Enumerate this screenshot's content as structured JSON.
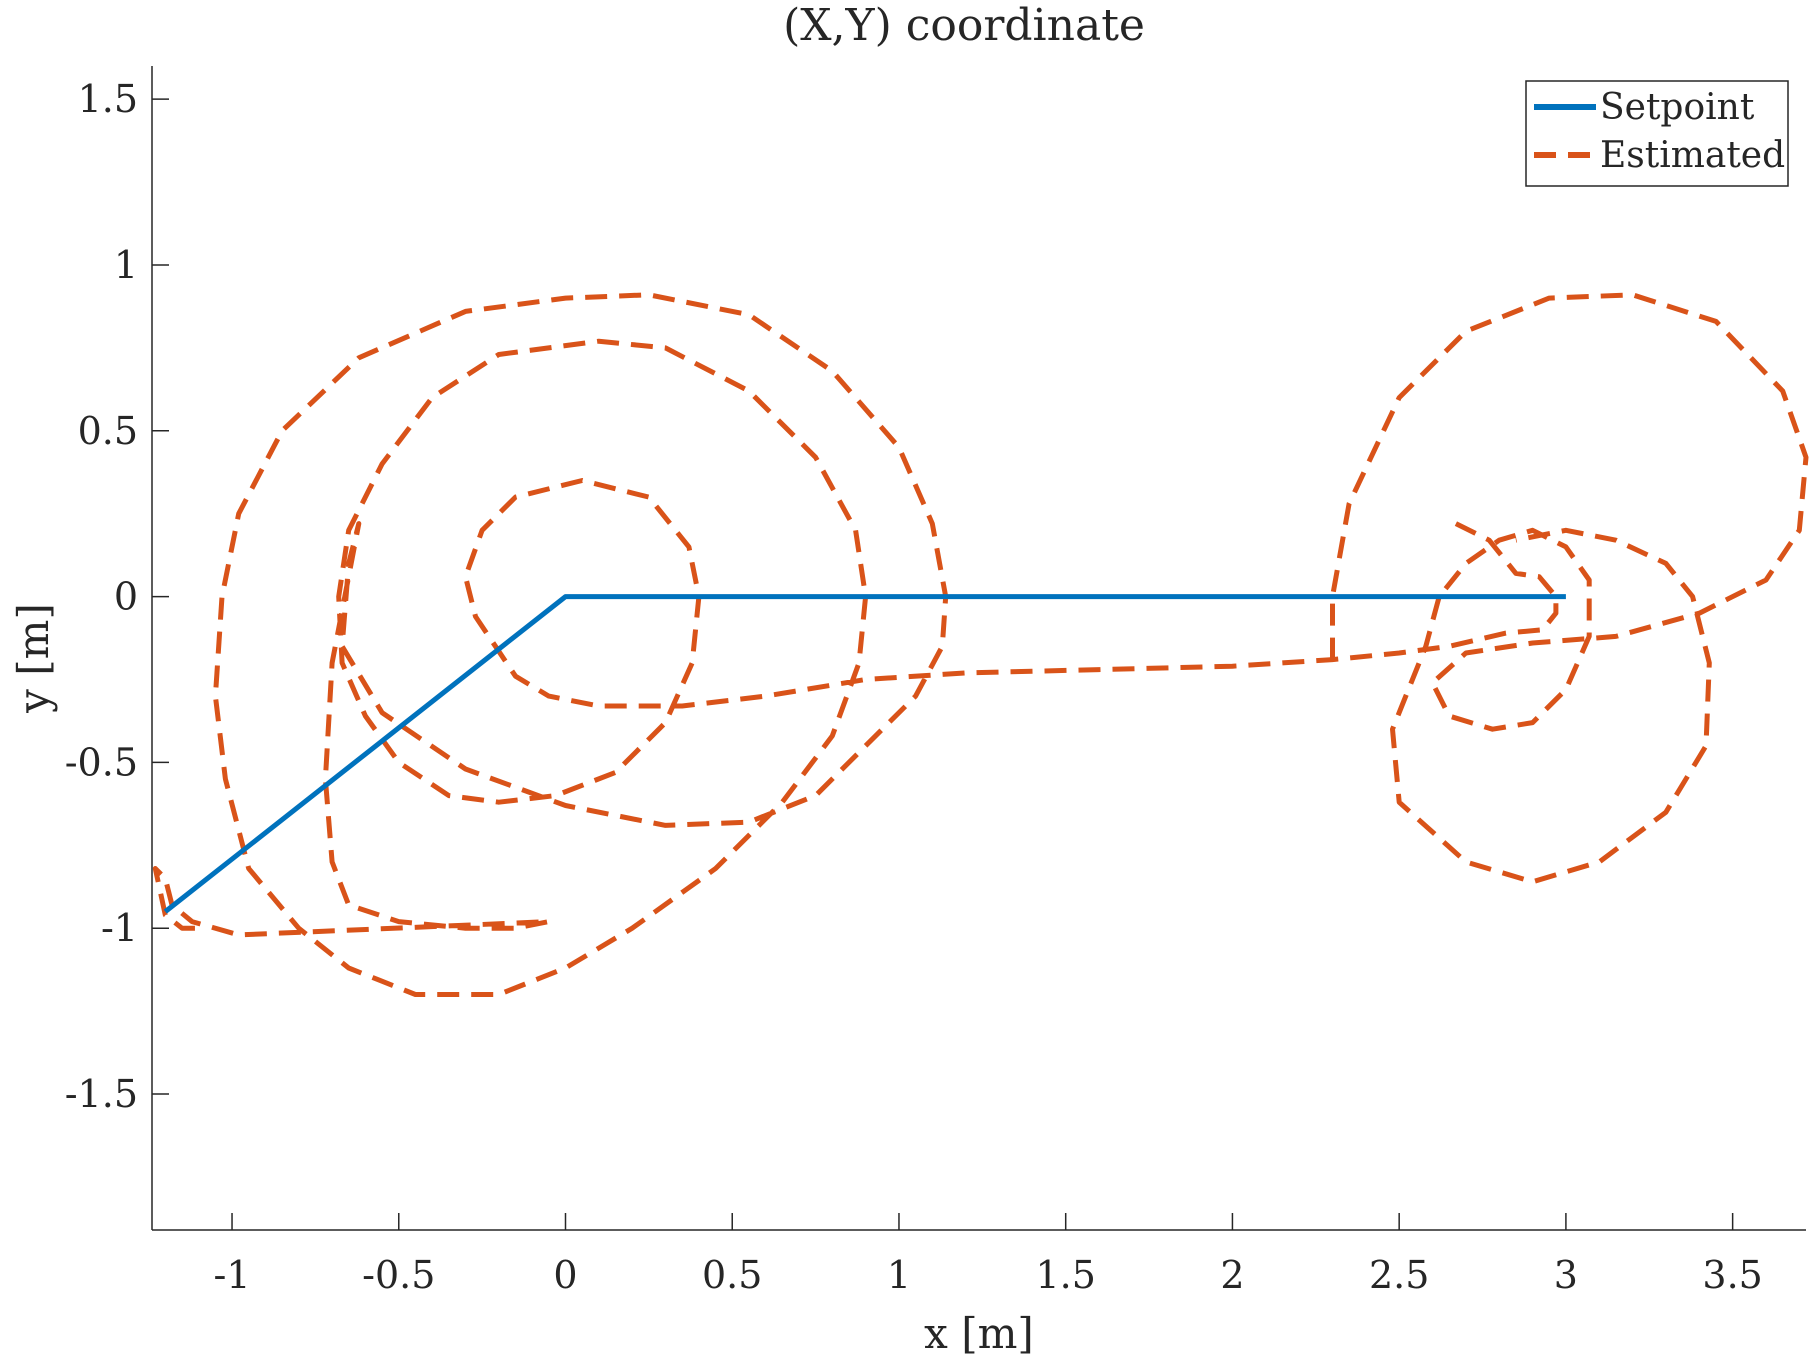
{
  "chart_data": {
    "type": "line",
    "title": "(X,Y) coordinate",
    "xlabel": "x [m]",
    "ylabel": "y [m]",
    "xlim": [
      -1.24,
      3.72
    ],
    "ylim": [
      -1.91,
      1.6
    ],
    "xticks": [
      -1,
      -0.5,
      0,
      0.5,
      1,
      1.5,
      2,
      2.5,
      3,
      3.5
    ],
    "yticks": [
      -1.5,
      -1,
      -0.5,
      0,
      0.5,
      1,
      1.5
    ],
    "grid": false,
    "legend_position": "top-right",
    "series": [
      {
        "name": "Setpoint",
        "color": "#0072BD",
        "style": "solid",
        "points": [
          [
            -1.2,
            -0.95
          ],
          [
            0,
            0
          ],
          [
            3,
            0
          ]
        ]
      },
      {
        "name": "Estimated",
        "color": "#D95319",
        "style": "dashed",
        "points": [
          [
            2.67,
            0.22
          ],
          [
            2.77,
            0.17
          ],
          [
            2.85,
            0.07
          ],
          [
            2.92,
            0.06
          ],
          [
            2.97,
            0.0
          ],
          [
            2.97,
            -0.05
          ],
          [
            2.93,
            -0.1
          ],
          [
            2.82,
            -0.11
          ],
          [
            2.65,
            -0.15
          ],
          [
            2.5,
            -0.17
          ],
          [
            2.3,
            -0.19
          ],
          [
            2.0,
            -0.21
          ],
          [
            1.6,
            -0.22
          ],
          [
            1.2,
            -0.23
          ],
          [
            0.9,
            -0.25
          ],
          [
            0.6,
            -0.3
          ],
          [
            0.35,
            -0.33
          ],
          [
            0.1,
            -0.33
          ],
          [
            -0.05,
            -0.3
          ],
          [
            -0.15,
            -0.24
          ],
          [
            -0.27,
            -0.06
          ],
          [
            -0.3,
            0.06
          ],
          [
            -0.25,
            0.2
          ],
          [
            -0.15,
            0.3
          ],
          [
            0.05,
            0.35
          ],
          [
            0.25,
            0.3
          ],
          [
            0.37,
            0.15
          ],
          [
            0.4,
            0.0
          ],
          [
            0.38,
            -0.2
          ],
          [
            0.3,
            -0.38
          ],
          [
            0.15,
            -0.53
          ],
          [
            -0.03,
            -0.6
          ],
          [
            -0.2,
            -0.62
          ],
          [
            -0.35,
            -0.6
          ],
          [
            -0.5,
            -0.5
          ],
          [
            -0.6,
            -0.36
          ],
          [
            -0.67,
            -0.2
          ],
          [
            -0.68,
            0.0
          ],
          [
            -0.65,
            0.2
          ],
          [
            -0.55,
            0.4
          ],
          [
            -0.4,
            0.6
          ],
          [
            -0.2,
            0.73
          ],
          [
            0.1,
            0.77
          ],
          [
            0.3,
            0.75
          ],
          [
            0.55,
            0.62
          ],
          [
            0.75,
            0.42
          ],
          [
            0.87,
            0.2
          ],
          [
            0.9,
            0.0
          ],
          [
            0.88,
            -0.2
          ],
          [
            0.8,
            -0.42
          ],
          [
            0.65,
            -0.62
          ],
          [
            0.45,
            -0.82
          ],
          [
            0.2,
            -1.0
          ],
          [
            0.0,
            -1.12
          ],
          [
            -0.2,
            -1.2
          ],
          [
            -0.45,
            -1.2
          ],
          [
            -0.65,
            -1.12
          ],
          [
            -0.8,
            -1.0
          ],
          [
            -0.95,
            -0.82
          ],
          [
            -1.02,
            -0.55
          ],
          [
            -1.05,
            -0.3
          ],
          [
            -1.03,
            0.0
          ],
          [
            -0.98,
            0.25
          ],
          [
            -0.85,
            0.5
          ],
          [
            -0.62,
            0.72
          ],
          [
            -0.3,
            0.86
          ],
          [
            0.0,
            0.9
          ],
          [
            0.25,
            0.91
          ],
          [
            0.55,
            0.85
          ],
          [
            0.8,
            0.68
          ],
          [
            1.0,
            0.45
          ],
          [
            1.1,
            0.22
          ],
          [
            1.14,
            0.0
          ],
          [
            1.13,
            -0.15
          ],
          [
            1.05,
            -0.3
          ],
          [
            0.95,
            -0.4
          ],
          [
            0.75,
            -0.6
          ],
          [
            0.55,
            -0.68
          ],
          [
            0.3,
            -0.69
          ],
          [
            0.0,
            -0.63
          ],
          [
            -0.3,
            -0.52
          ],
          [
            -0.55,
            -0.35
          ],
          [
            -0.67,
            -0.15
          ],
          [
            -0.65,
            0.1
          ],
          [
            -0.62,
            0.22
          ],
          [
            -0.7,
            -0.2
          ],
          [
            -0.72,
            -0.55
          ],
          [
            -0.7,
            -0.8
          ],
          [
            -0.65,
            -0.93
          ],
          [
            -0.5,
            -0.98
          ],
          [
            -0.3,
            -1.0
          ],
          [
            -0.15,
            -1.0
          ],
          [
            -0.05,
            -0.98
          ],
          [
            -0.98,
            -1.02
          ],
          [
            -1.12,
            -0.98
          ],
          [
            -1.18,
            -0.93
          ],
          [
            -1.2,
            -0.85
          ],
          [
            -1.23,
            -0.82
          ],
          [
            -1.2,
            -0.96
          ],
          [
            -1.15,
            -1.0
          ],
          [
            -1.08,
            -1.0
          ]
        ]
      },
      {
        "name": "",
        "color": "#D95319",
        "style": "dashed",
        "points": [
          [
            2.3,
            -0.19
          ],
          [
            2.3,
            0.0
          ],
          [
            2.35,
            0.28
          ],
          [
            2.5,
            0.6
          ],
          [
            2.7,
            0.8
          ],
          [
            2.95,
            0.9
          ],
          [
            3.2,
            0.91
          ],
          [
            3.45,
            0.83
          ],
          [
            3.65,
            0.62
          ],
          [
            3.72,
            0.42
          ],
          [
            3.7,
            0.2
          ],
          [
            3.6,
            0.05
          ],
          [
            3.4,
            -0.05
          ],
          [
            3.15,
            -0.12
          ],
          [
            2.9,
            -0.14
          ],
          [
            2.7,
            -0.17
          ],
          [
            2.6,
            -0.26
          ],
          [
            2.65,
            -0.36
          ],
          [
            2.78,
            -0.4
          ],
          [
            2.9,
            -0.38
          ],
          [
            3.0,
            -0.28
          ],
          [
            3.07,
            -0.12
          ],
          [
            3.07,
            0.05
          ],
          [
            3.0,
            0.15
          ],
          [
            2.9,
            0.2
          ],
          [
            2.8,
            0.17
          ],
          [
            2.7,
            0.1
          ],
          [
            2.62,
            0.0
          ],
          [
            2.58,
            -0.15
          ],
          [
            2.48,
            -0.4
          ],
          [
            2.5,
            -0.62
          ],
          [
            2.7,
            -0.8
          ],
          [
            2.9,
            -0.86
          ],
          [
            3.1,
            -0.8
          ],
          [
            3.3,
            -0.65
          ],
          [
            3.42,
            -0.45
          ],
          [
            3.43,
            -0.2
          ],
          [
            3.38,
            0.0
          ],
          [
            3.3,
            0.1
          ],
          [
            3.15,
            0.17
          ],
          [
            3.0,
            0.2
          ],
          [
            2.85,
            0.17
          ]
        ]
      }
    ]
  }
}
